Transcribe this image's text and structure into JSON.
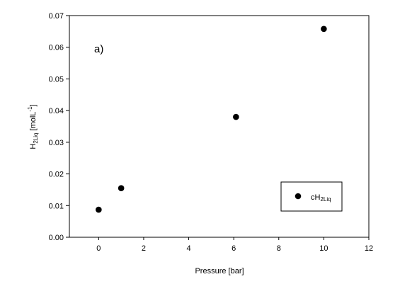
{
  "chart_data": {
    "type": "scatter",
    "xlabel": "Pressure [bar]",
    "ylabel": {
      "main": "H",
      "sub": "2Liq",
      "unit_pre": " [molL",
      "unit_sup": "-1",
      "unit_post": "]"
    },
    "xlim": [
      -1.3,
      12
    ],
    "ylim": [
      0,
      0.07
    ],
    "x_ticks": [
      0,
      2,
      4,
      6,
      8,
      10,
      12
    ],
    "x_tick_labels": [
      "0",
      "2",
      "4",
      "6",
      "8",
      "10",
      "12"
    ],
    "y_ticks": [
      0,
      0.01,
      0.02,
      0.03,
      0.04,
      0.05,
      0.06,
      0.07
    ],
    "y_tick_labels": [
      "0.00",
      "0.01",
      "0.02",
      "0.03",
      "0.04",
      "0.05",
      "0.06",
      "0.07"
    ],
    "annotation": "a)",
    "grid": false,
    "legend_position": "lower-right",
    "series": [
      {
        "name": {
          "main": "cH",
          "sub": "2Liq"
        },
        "marker": "filled-circle",
        "color": "#000000",
        "x": [
          0.0,
          1.0,
          6.1,
          10.0
        ],
        "y": [
          0.0087,
          0.0155,
          0.038,
          0.0658
        ]
      }
    ]
  }
}
